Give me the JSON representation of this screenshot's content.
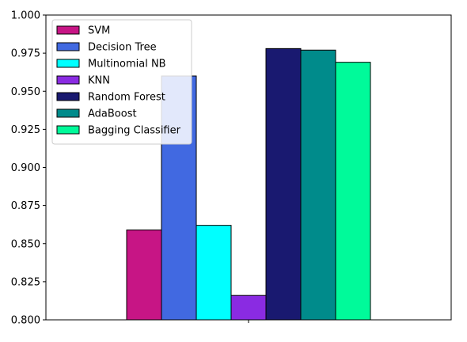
{
  "chart_data": {
    "type": "bar",
    "x_categories": [
      ""
    ],
    "series": [
      {
        "name": "SVM",
        "value": 0.859,
        "color": "#C71585"
      },
      {
        "name": "Decision Tree",
        "value": 0.96,
        "color": "#4169E1"
      },
      {
        "name": "Multinomial NB",
        "value": 0.862,
        "color": "#00FFFF"
      },
      {
        "name": "KNN",
        "value": 0.816,
        "color": "#8A2BE2"
      },
      {
        "name": "Random Forest",
        "value": 0.978,
        "color": "#191970"
      },
      {
        "name": "AdaBoost",
        "value": 0.977,
        "color": "#008B8B"
      },
      {
        "name": "Bagging Classifier",
        "value": 0.969,
        "color": "#00FA9A"
      }
    ],
    "ylim": [
      0.8,
      1.0
    ],
    "yticks": [
      "0.800",
      "0.825",
      "0.850",
      "0.875",
      "0.900",
      "0.925",
      "0.950",
      "0.975",
      "1.000"
    ],
    "grid": false,
    "legend_position": "top-left",
    "title": "",
    "xlabel": "",
    "ylabel": ""
  }
}
